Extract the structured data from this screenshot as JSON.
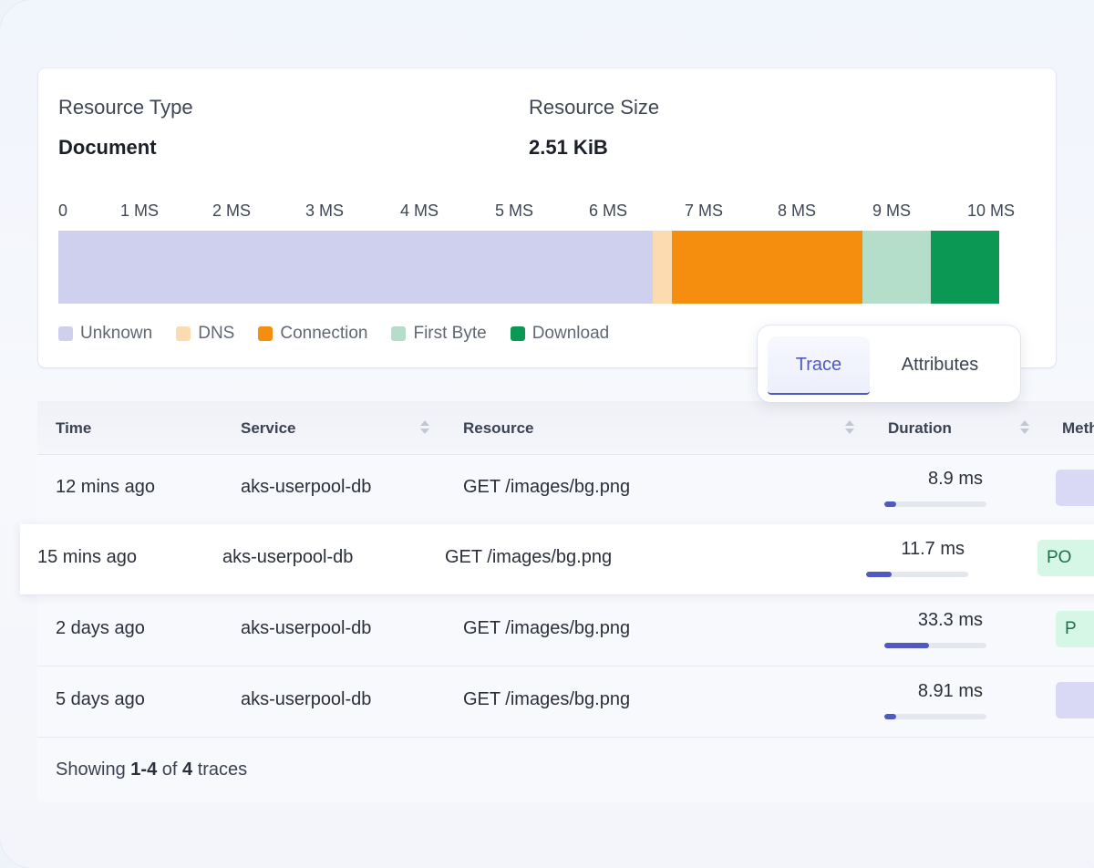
{
  "resource": {
    "type_label": "Resource Type",
    "type_value": "Document",
    "size_label": "Resource Size",
    "size_value": "2.51 KiB"
  },
  "timeline": {
    "ticks": [
      "0",
      "1 MS",
      "2 MS",
      "3 MS",
      "4 MS",
      "5 MS",
      "6 MS",
      "7 MS",
      "8 MS",
      "9 MS",
      "10 MS"
    ],
    "segments": [
      {
        "name": "Unknown",
        "start_ms": 0,
        "end_ms": 6.3,
        "color": "#cfcfee"
      },
      {
        "name": "DNS",
        "start_ms": 6.3,
        "end_ms": 6.5,
        "color": "#fddbb0"
      },
      {
        "name": "Connection",
        "start_ms": 6.5,
        "end_ms": 8.52,
        "color": "#f58d0f"
      },
      {
        "name": "First Byte",
        "start_ms": 8.52,
        "end_ms": 9.25,
        "color": "#b4dec9"
      },
      {
        "name": "Download",
        "start_ms": 9.25,
        "end_ms": 9.97,
        "color": "#0b9754"
      }
    ]
  },
  "legend": [
    {
      "label": "Unknown",
      "color": "#cfcfee"
    },
    {
      "label": "DNS",
      "color": "#fddbb0"
    },
    {
      "label": "Connection",
      "color": "#f58d0f"
    },
    {
      "label": "First Byte",
      "color": "#b4dec9"
    },
    {
      "label": "Download",
      "color": "#0b9754"
    }
  ],
  "tabs": {
    "trace": "Trace",
    "attributes": "Attributes",
    "active": "trace"
  },
  "table": {
    "headers": {
      "time": "Time",
      "service": "Service",
      "resource": "Resource",
      "duration": "Duration",
      "method": "Meth"
    },
    "rows": [
      {
        "time": "12 mins ago",
        "service": "aks-userpool-db",
        "resource": "GET /images/bg.png",
        "duration": "8.9 ms",
        "duration_fraction": 0.12,
        "method": "",
        "method_color": "#d9d9f6",
        "method_text_color": "#4a52b5"
      },
      {
        "time": "15 mins ago",
        "service": "aks-userpool-db",
        "resource": "GET /images/bg.png",
        "duration": "11.7 ms",
        "duration_fraction": 0.25,
        "method": "PO",
        "method_color": "#d7f7e6",
        "method_text_color": "#1f6e4a"
      },
      {
        "time": "2 days ago",
        "service": "aks-userpool-db",
        "resource": "GET /images/bg.png",
        "duration": "33.3 ms",
        "duration_fraction": 0.44,
        "method": "P",
        "method_color": "#d7f7e6",
        "method_text_color": "#1f6e4a"
      },
      {
        "time": "5 days ago",
        "service": "aks-userpool-db",
        "resource": "GET /images/bg.png",
        "duration": "8.91 ms",
        "duration_fraction": 0.12,
        "method": "",
        "method_color": "#d9d9f6",
        "method_text_color": "#4a52b5"
      }
    ],
    "footer": {
      "prefix": "Showing",
      "range": "1-4",
      "of": "of",
      "total": "4",
      "suffix": "traces"
    }
  }
}
